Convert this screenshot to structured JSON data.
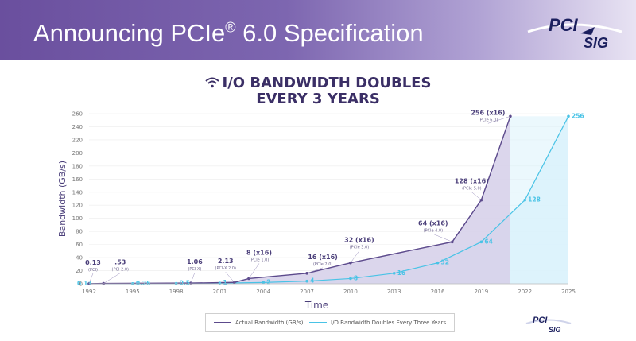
{
  "slide": {
    "title_main": "Announcing PCIe",
    "title_reg": "®",
    "title_rest": " 6.0 Specification",
    "logo_top": "PCI SIG",
    "logo_top_pci": "PCI",
    "logo_top_sig": "SIG",
    "logo_bottom_pci": "PCI",
    "logo_bottom_sig": "SIG"
  },
  "colors": {
    "actual": "#5c4a8c",
    "actual_fill": "#d7d1ea",
    "doubling": "#49c3e6",
    "doubling_fill": "#daf2fb",
    "banner": "#6a4f9e"
  },
  "chart_data": {
    "type": "line",
    "headline_icon": "wifi-icon",
    "title_line1": "I/O BANDWIDTH DOUBLES",
    "title_line2": "EVERY 3 YEARS",
    "xlabel": "Time",
    "ylabel": "Bandwidth (GB/s)",
    "xlim": [
      1992,
      2025
    ],
    "ylim": [
      0,
      260
    ],
    "xticks": [
      1992,
      1995,
      1998,
      2001,
      2004,
      2007,
      2010,
      2013,
      2016,
      2019,
      2022,
      2025
    ],
    "yticks": [
      0,
      20,
      40,
      60,
      80,
      100,
      120,
      140,
      160,
      180,
      200,
      220,
      240,
      260
    ],
    "grid": true,
    "legend_position": "bottom",
    "series": [
      {
        "name": "Actual Bandwidth (GB/s)",
        "points": [
          {
            "x": 1992,
            "y": 0.13,
            "label": "0.13",
            "sub": "(PCI)"
          },
          {
            "x": 1993,
            "y": 0.53,
            "label": ".53",
            "sub": "(PCI 2.0)"
          },
          {
            "x": 1999,
            "y": 1.06,
            "label": "1.06",
            "sub": "(PCI-X)"
          },
          {
            "x": 2002,
            "y": 2.13,
            "label": "2.13",
            "sub": "(PCI-X 2.0)"
          },
          {
            "x": 2003,
            "y": 8,
            "label": "8 (x16)",
            "sub": "(PCIe 1.0)"
          },
          {
            "x": 2007,
            "y": 16,
            "label": "16 (x16)",
            "sub": "(PCIe 2.0)"
          },
          {
            "x": 2010,
            "y": 32,
            "label": "32 (x16)",
            "sub": "(PCIe 3.0)"
          },
          {
            "x": 2017,
            "y": 64,
            "label": "64 (x16)",
            "sub": "(PCIe 4.0)"
          },
          {
            "x": 2019,
            "y": 128,
            "label": "128 (x16)",
            "sub": "(PCIe 5.0)"
          },
          {
            "x": 2021,
            "y": 256,
            "label": "256 (x16)",
            "sub": "(PCIe 6.0)"
          }
        ]
      },
      {
        "name": "I/O Bandwidth Doubles Every Three Years",
        "points": [
          {
            "x": 1992,
            "y": 0.13,
            "label": "0.13"
          },
          {
            "x": 1995,
            "y": 0.26,
            "label": "0.26"
          },
          {
            "x": 1998,
            "y": 0.5,
            "label": "0.5"
          },
          {
            "x": 2001,
            "y": 1,
            "label": "1"
          },
          {
            "x": 2004,
            "y": 2,
            "label": "2"
          },
          {
            "x": 2007,
            "y": 4,
            "label": "4"
          },
          {
            "x": 2010,
            "y": 8,
            "label": "8"
          },
          {
            "x": 2013,
            "y": 16,
            "label": "16"
          },
          {
            "x": 2016,
            "y": 32,
            "label": "32"
          },
          {
            "x": 2019,
            "y": 64,
            "label": "64"
          },
          {
            "x": 2022,
            "y": 128,
            "label": "128"
          },
          {
            "x": 2025,
            "y": 256,
            "label": "256"
          }
        ]
      }
    ]
  }
}
